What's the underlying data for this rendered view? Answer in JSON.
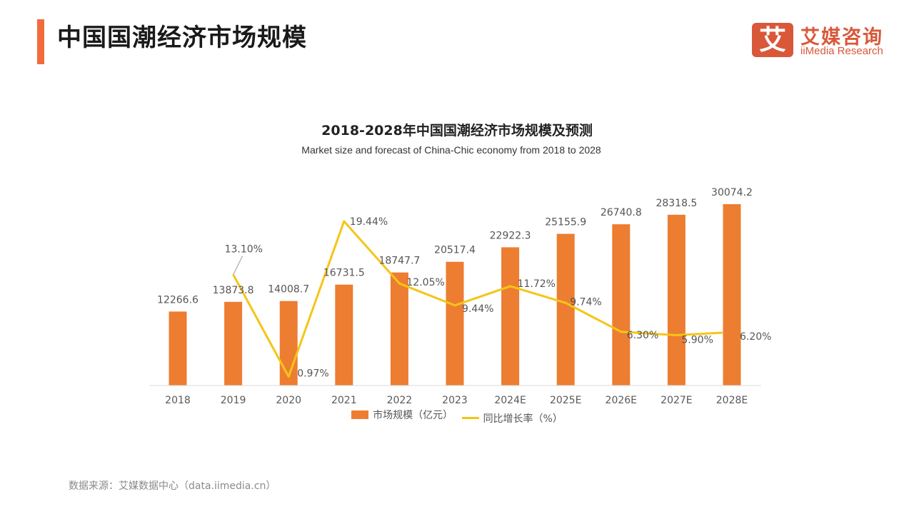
{
  "header": {
    "title": "中国国潮经济市场规模",
    "accent_color": "#f26b3a"
  },
  "logo": {
    "mark": "艾",
    "name_cn": "艾媒咨询",
    "name_en": "iiMedia Research",
    "color": "#d9583a"
  },
  "chart_data": {
    "type": "bar",
    "title": "2018-2028年中国国潮经济市场规模及预测",
    "subtitle": "Market size and forecast of China-Chic economy from 2018 to 2028",
    "categories": [
      "2018",
      "2019",
      "2020",
      "2021",
      "2022",
      "2023",
      "2024E",
      "2025E",
      "2026E",
      "2027E",
      "2028E"
    ],
    "series": [
      {
        "name": "市场规模（亿元）",
        "type": "bar",
        "color": "#ed7d31",
        "values": [
          12266.6,
          13873.8,
          14008.7,
          16731.5,
          18747.7,
          20517.4,
          22922.3,
          25155.9,
          26740.8,
          28318.5,
          30074.2
        ],
        "labels": [
          "12266.6",
          "13873.8",
          "14008.7",
          "16731.5",
          "18747.7",
          "20517.4",
          "22922.3",
          "25155.9",
          "26740.8",
          "28318.5",
          "30074.2"
        ]
      },
      {
        "name": "同比增长率（%）",
        "type": "line",
        "color": "#f5c518",
        "values": [
          null,
          13.1,
          0.97,
          19.44,
          12.05,
          9.44,
          11.72,
          9.74,
          6.3,
          5.9,
          6.2
        ],
        "labels": [
          "",
          "13.10%",
          "0.97%",
          "19.44%",
          "12.05%",
          "9.44%",
          "11.72%",
          "9.74%",
          "6.30%",
          "5.90%",
          "6.20%"
        ]
      }
    ],
    "xlabel": "",
    "ylabel": "",
    "ylim_bar": [
      0,
      30074.2
    ],
    "ylim_line": [
      0,
      19.44
    ],
    "grid": false,
    "legend": "bottom-center"
  },
  "legend": {
    "bar_label": "市场规模（亿元）",
    "line_label": "同比增长率（%）"
  },
  "footer": {
    "source": "数据来源：艾媒数据中心（data.iimedia.cn）"
  }
}
